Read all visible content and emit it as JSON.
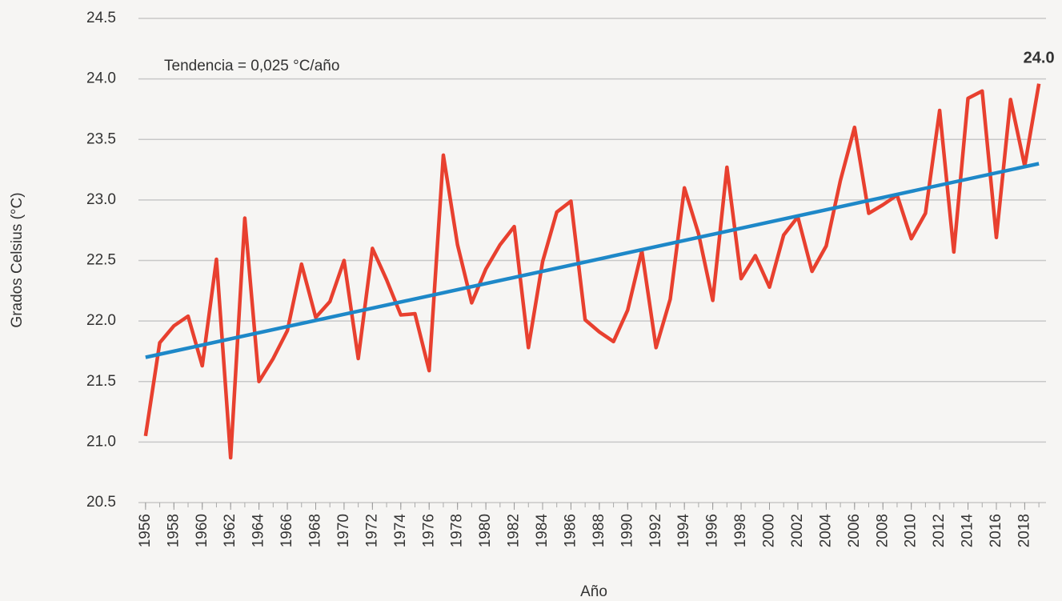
{
  "chart_data": {
    "type": "line",
    "y_label": "Grados Celsius (°C)",
    "x_label": "Año",
    "annotation": "Tendencia = 0,025 °C/año",
    "x": [
      1956,
      1957,
      1958,
      1959,
      1960,
      1961,
      1962,
      1963,
      1964,
      1965,
      1966,
      1967,
      1968,
      1969,
      1970,
      1971,
      1972,
      1973,
      1974,
      1975,
      1976,
      1977,
      1978,
      1979,
      1980,
      1981,
      1982,
      1983,
      1984,
      1985,
      1986,
      1987,
      1988,
      1989,
      1990,
      1991,
      1992,
      1993,
      1994,
      1995,
      1996,
      1997,
      1998,
      1999,
      2000,
      2001,
      2002,
      2003,
      2004,
      2005,
      2006,
      2007,
      2008,
      2009,
      2010,
      2011,
      2012,
      2013,
      2014,
      2015,
      2016,
      2017,
      2018,
      2019
    ],
    "series": [
      {
        "color": "#e8402f",
        "values": [
          21.05,
          21.82,
          21.96,
          22.04,
          21.63,
          22.51,
          20.87,
          22.85,
          21.5,
          21.69,
          21.92,
          22.47,
          22.03,
          22.16,
          22.5,
          21.69,
          22.6,
          22.34,
          22.05,
          22.06,
          21.59,
          23.37,
          22.63,
          22.15,
          22.43,
          22.63,
          22.78,
          21.78,
          22.49,
          22.9,
          22.99,
          22.01,
          21.91,
          21.83,
          22.09,
          22.58,
          21.78,
          22.18,
          23.1,
          22.72,
          22.17,
          23.27,
          22.35,
          22.54,
          22.28,
          22.71,
          22.86,
          22.41,
          22.62,
          23.16,
          23.6,
          22.89,
          22.96,
          23.04,
          22.68,
          22.89,
          23.74,
          22.57,
          23.84,
          23.9,
          22.69,
          23.83,
          23.28,
          23.96
        ],
        "value_labels": [
          null,
          null,
          null,
          null,
          null,
          null,
          null,
          null,
          null,
          null,
          null,
          null,
          null,
          null,
          null,
          null,
          null,
          null,
          null,
          null,
          null,
          null,
          null,
          null,
          null,
          null,
          null,
          null,
          null,
          null,
          null,
          null,
          null,
          null,
          null,
          null,
          null,
          null,
          null,
          null,
          null,
          null,
          null,
          null,
          null,
          null,
          null,
          null,
          null,
          null,
          null,
          null,
          null,
          null,
          null,
          null,
          null,
          null,
          null,
          null,
          null,
          null,
          null,
          "24.0"
        ],
        "value_label_color": "#1e88c8"
      },
      {
        "color": "#1e88c8",
        "x": [
          1956,
          2019
        ],
        "values": [
          21.7,
          23.3
        ]
      }
    ],
    "xlim": [
      1955.5,
      2019.5
    ],
    "xticks": [
      1956,
      1958,
      1960,
      1962,
      1964,
      1966,
      1968,
      1970,
      1972,
      1974,
      1976,
      1978,
      1980,
      1982,
      1984,
      1986,
      1988,
      1990,
      1992,
      1994,
      1996,
      1998,
      2000,
      2002,
      2004,
      2006,
      2008,
      2010,
      2012,
      2014,
      2016,
      2018
    ],
    "ylim": [
      20.5,
      24.5
    ],
    "yticks": [
      20.5,
      {
        "value": 21,
        "label": "21.0"
      },
      21.5,
      {
        "value": 22,
        "label": "22.0"
      },
      22.5,
      {
        "value": 23,
        "label": "23.0"
      },
      23.5,
      {
        "value": 24,
        "label": "24.0"
      },
      24.5
    ],
    "grid": true
  }
}
